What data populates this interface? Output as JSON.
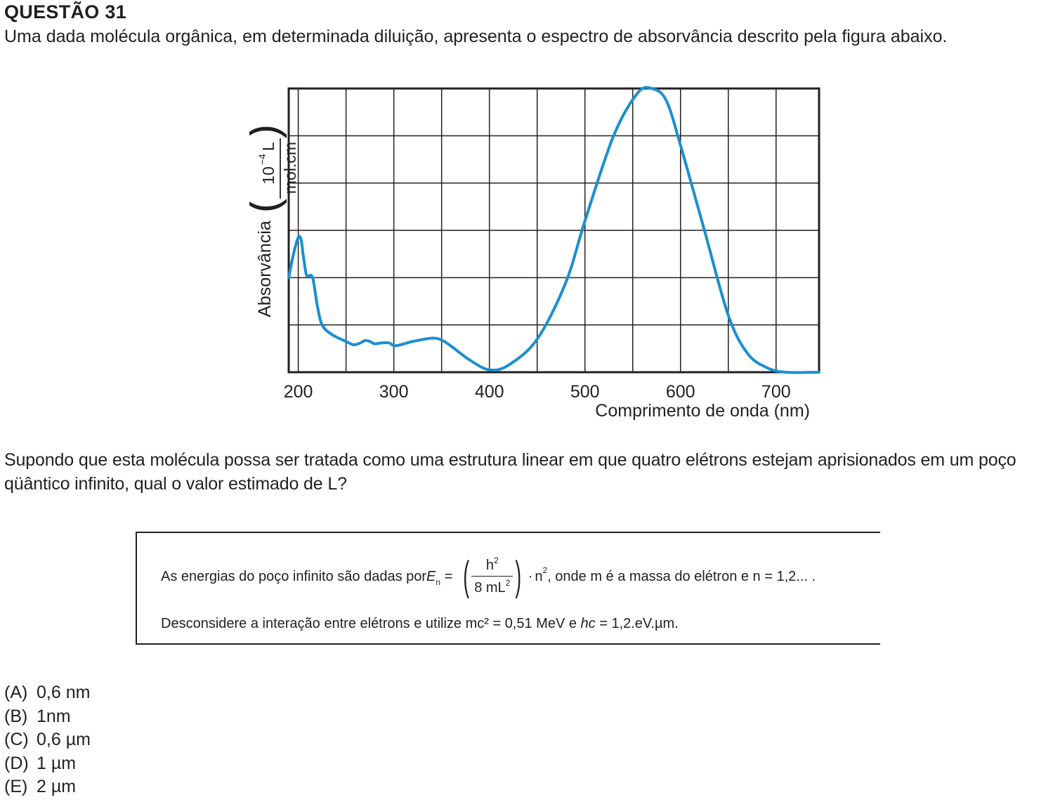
{
  "header": {
    "title": "QUESTÃO 31",
    "intro": "Uma dada molécula orgânica, em determinada diluição, apresenta o espectro de absorvância descrito pela figura abaixo."
  },
  "chart_data": {
    "type": "line",
    "title": "",
    "xlabel": "Comprimento de onda (nm)",
    "ylabel": "Absorvância",
    "ylabel_unit_num": "10",
    "ylabel_unit_exp": "−4",
    "ylabel_unit_num_tail": "L",
    "ylabel_unit_den": "mol.cm",
    "xlim": [
      190,
      745
    ],
    "ylim": [
      0,
      6
    ],
    "x_ticks": [
      200,
      300,
      400,
      500,
      600,
      700
    ],
    "grid": true,
    "line_color": "#1a8fd0",
    "series": [
      {
        "values": [
          [
            190,
            2.0
          ],
          [
            195,
            2.5
          ],
          [
            200,
            2.85
          ],
          [
            203,
            2.8
          ],
          [
            205,
            2.5
          ],
          [
            208,
            2.1
          ],
          [
            210,
            2.03
          ],
          [
            215,
            2.0
          ],
          [
            220,
            1.4
          ],
          [
            225,
            1.0
          ],
          [
            235,
            0.8
          ],
          [
            250,
            0.65
          ],
          [
            258,
            0.58
          ],
          [
            265,
            0.62
          ],
          [
            270,
            0.67
          ],
          [
            275,
            0.65
          ],
          [
            280,
            0.6
          ],
          [
            287,
            0.62
          ],
          [
            295,
            0.62
          ],
          [
            302,
            0.56
          ],
          [
            320,
            0.65
          ],
          [
            340,
            0.72
          ],
          [
            350,
            0.68
          ],
          [
            360,
            0.55
          ],
          [
            380,
            0.25
          ],
          [
            400,
            0.05
          ],
          [
            420,
            0.15
          ],
          [
            450,
            0.7
          ],
          [
            480,
            1.9
          ],
          [
            500,
            3.2
          ],
          [
            530,
            5.0
          ],
          [
            555,
            5.9
          ],
          [
            570,
            6.0
          ],
          [
            585,
            5.75
          ],
          [
            600,
            4.8
          ],
          [
            625,
            3.0
          ],
          [
            650,
            1.2
          ],
          [
            670,
            0.4
          ],
          [
            690,
            0.1
          ],
          [
            710,
            0.0
          ],
          [
            745,
            0.0
          ]
        ]
      }
    ]
  },
  "question": {
    "text": "Supondo que esta molécula possa ser tratada como uma estrutura linear em que quatro elétrons estejam aprisionados em um poço qüântico infinito, qual o valor estimado de L?"
  },
  "info_box": {
    "line1_prefix": "As energias do poço infinito são dadas por ",
    "en_symbol": "E",
    "en_sub": "n",
    "equals": " = ",
    "frac_num": "h",
    "frac_num_sup": "2",
    "frac_den": "8 mL",
    "frac_den_sup": "2",
    "n_sym": "n",
    "n_sup": "2",
    "line1_suffix": ", onde m é a massa do elétron e n = 1,2... .",
    "line2_part1": "Desconsidere a interação entre elétrons e utilize mc² = 0,51 MeV e ",
    "line2_hc": "hc",
    "line2_part2": " = 1,2.eV.µm."
  },
  "options": [
    {
      "letter": "(A)",
      "text": "0,6 nm"
    },
    {
      "letter": "(B)",
      "text": "1nm"
    },
    {
      "letter": "(C)",
      "text": "0,6 µm"
    },
    {
      "letter": "(D)",
      "text": "1 µm"
    },
    {
      "letter": "(E)",
      "text": "2 µm"
    }
  ]
}
